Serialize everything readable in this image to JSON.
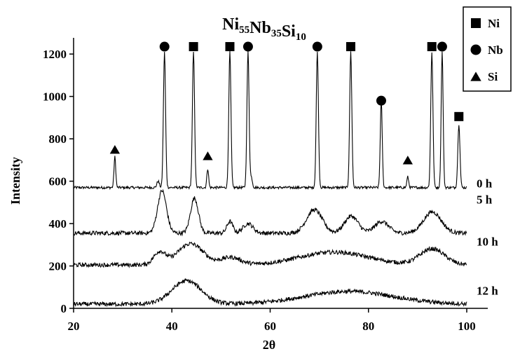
{
  "chart_data": {
    "type": "line",
    "title": {
      "base": [
        "Ni",
        "Nb",
        "Si"
      ],
      "subscripts": [
        "55",
        "35",
        "10"
      ]
    },
    "xlabel": "2θ",
    "ylabel": "Intensity",
    "xlim": [
      20,
      100
    ],
    "ylim": [
      0,
      1250
    ],
    "x_ticks": [
      20,
      40,
      60,
      80,
      100
    ],
    "y_ticks": [
      0,
      200,
      400,
      600,
      800,
      1000,
      1200
    ],
    "grid": false,
    "legend": {
      "position": "top-right",
      "entries": [
        {
          "marker": "square",
          "label": "Ni"
        },
        {
          "marker": "circle",
          "label": "Nb"
        },
        {
          "marker": "triangle",
          "label": "Si"
        }
      ]
    },
    "series": [
      {
        "name": "0 h",
        "baseline": 570,
        "label_y": 590,
        "peaks": [
          {
            "x": 28.4,
            "y": 715,
            "width": 0.18
          },
          {
            "x": 37.2,
            "y": 600,
            "width": 0.25
          },
          {
            "x": 38.5,
            "y": 1210,
            "width": 0.22
          },
          {
            "x": 44.4,
            "y": 1210,
            "width": 0.22
          },
          {
            "x": 47.3,
            "y": 660,
            "width": 0.18
          },
          {
            "x": 51.8,
            "y": 1210,
            "width": 0.22
          },
          {
            "x": 55.5,
            "y": 1210,
            "width": 0.22
          },
          {
            "x": 56.2,
            "y": 615,
            "width": 0.2
          },
          {
            "x": 69.6,
            "y": 1210,
            "width": 0.22
          },
          {
            "x": 76.4,
            "y": 1210,
            "width": 0.22
          },
          {
            "x": 82.6,
            "y": 980,
            "width": 0.2
          },
          {
            "x": 88.0,
            "y": 620,
            "width": 0.18
          },
          {
            "x": 92.9,
            "y": 1210,
            "width": 0.22
          },
          {
            "x": 95.0,
            "y": 1210,
            "width": 0.2
          },
          {
            "x": 98.4,
            "y": 870,
            "width": 0.22
          }
        ]
      },
      {
        "name": "5 h",
        "baseline": 355,
        "label_y": 515,
        "peaks": [
          {
            "x": 38.0,
            "y": 555,
            "width": 0.9
          },
          {
            "x": 44.6,
            "y": 520,
            "width": 0.8
          },
          {
            "x": 51.8,
            "y": 410,
            "width": 0.6
          },
          {
            "x": 55.5,
            "y": 400,
            "width": 1.0
          },
          {
            "x": 69.0,
            "y": 465,
            "width": 1.6
          },
          {
            "x": 76.5,
            "y": 435,
            "width": 1.4
          },
          {
            "x": 82.7,
            "y": 410,
            "width": 1.4
          },
          {
            "x": 93.0,
            "y": 455,
            "width": 1.8
          }
        ]
      },
      {
        "name": "10 h",
        "baseline": 205,
        "label_y": 315,
        "peaks": [
          {
            "x": 37.5,
            "y": 265,
            "width": 1.2
          },
          {
            "x": 43.8,
            "y": 305,
            "width": 2.6
          },
          {
            "x": 52.0,
            "y": 240,
            "width": 2.0
          },
          {
            "x": 73.0,
            "y": 265,
            "width": 7.0
          },
          {
            "x": 93.0,
            "y": 280,
            "width": 2.5
          }
        ]
      },
      {
        "name": "12 h",
        "baseline": 20,
        "label_y": 85,
        "peaks": [
          {
            "x": 43.0,
            "y": 130,
            "width": 3.0
          },
          {
            "x": 76.0,
            "y": 80,
            "width": 9.0
          }
        ]
      }
    ],
    "phase_markers": [
      {
        "phase": "Si",
        "marker": "triangle",
        "x": 28.4,
        "y": 750
      },
      {
        "phase": "Nb",
        "marker": "circle",
        "x": 38.5,
        "y": 1235
      },
      {
        "phase": "Ni",
        "marker": "square",
        "x": 44.4,
        "y": 1235
      },
      {
        "phase": "Si",
        "marker": "triangle",
        "x": 47.3,
        "y": 720
      },
      {
        "phase": "Ni",
        "marker": "square",
        "x": 51.8,
        "y": 1235
      },
      {
        "phase": "Nb",
        "marker": "circle",
        "x": 55.5,
        "y": 1235
      },
      {
        "phase": "Nb",
        "marker": "circle",
        "x": 69.6,
        "y": 1235
      },
      {
        "phase": "Ni",
        "marker": "square",
        "x": 76.4,
        "y": 1235
      },
      {
        "phase": "Nb",
        "marker": "circle",
        "x": 82.6,
        "y": 980
      },
      {
        "phase": "Si",
        "marker": "triangle",
        "x": 88.0,
        "y": 700
      },
      {
        "phase": "Ni",
        "marker": "square",
        "x": 92.9,
        "y": 1235
      },
      {
        "phase": "Nb",
        "marker": "circle",
        "x": 95.0,
        "y": 1235
      },
      {
        "phase": "Ni",
        "marker": "square",
        "x": 98.4,
        "y": 905
      }
    ]
  }
}
